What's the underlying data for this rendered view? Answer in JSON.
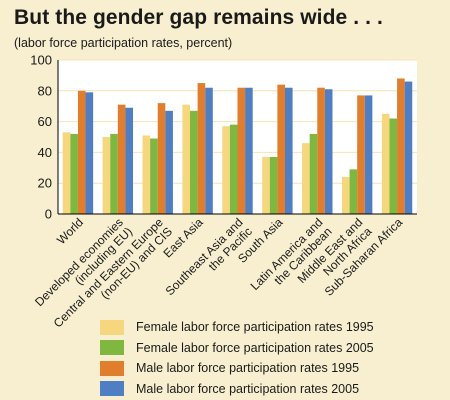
{
  "chart_data": {
    "type": "bar",
    "title": "But the gender gap remains wide . . .",
    "subtitle": "(labor force participation rates, percent)",
    "xlabel": "",
    "ylabel": "",
    "ylim": [
      0,
      100
    ],
    "yticks": [
      0,
      20,
      40,
      60,
      80,
      100
    ],
    "grid": true,
    "legend_position": "bottom",
    "categories": [
      "World",
      "Developed economies (including EU)",
      "Central and Eastern Europe (non-EU) and CIS",
      "East Asia",
      "Southeast Asia and the Pacific",
      "South Asia",
      "Latin America and the Caribbean",
      "Middle East and North Africa",
      "Sub-Saharan Africa"
    ],
    "category_label_lines": [
      [
        "World"
      ],
      [
        "Developed economies",
        "(including EU)"
      ],
      [
        "Central and Eastern Europe",
        "(non-EU) and CIS"
      ],
      [
        "East Asia"
      ],
      [
        "Southeast Asia and",
        "the Pacific"
      ],
      [
        "South Asia"
      ],
      [
        "Latin America and",
        "the Caribbean"
      ],
      [
        "Middle East and",
        "North Africa"
      ],
      [
        "Sub-Saharan Africa"
      ]
    ],
    "series": [
      {
        "name": "Female labor force participation rates 1995",
        "color": "#f6d77e",
        "values": [
          53,
          50,
          51,
          71,
          57,
          37,
          46,
          24,
          65
        ]
      },
      {
        "name": "Female labor force participation rates 2005",
        "color": "#7fb840",
        "values": [
          52,
          52,
          49,
          67,
          58,
          37,
          52,
          29,
          62
        ]
      },
      {
        "name": "Male labor force participation rates 1995",
        "color": "#e07e2e",
        "values": [
          80,
          71,
          72,
          85,
          82,
          84,
          82,
          77,
          88
        ]
      },
      {
        "name": "Male labor force participation rates 2005",
        "color": "#4f7fc2",
        "values": [
          79,
          69,
          67,
          82,
          82,
          82,
          81,
          77,
          86
        ]
      }
    ]
  },
  "colors": {
    "background": "#f7efcf",
    "plot_background": "#ffffff",
    "gridline": "#f3e4b3",
    "axis": "#000000"
  }
}
